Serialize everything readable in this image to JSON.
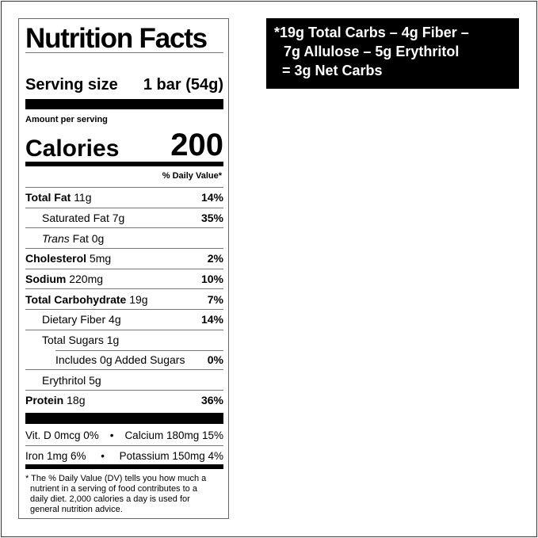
{
  "label": {
    "title": "Nutrition Facts",
    "serving_size_label": "Serving size",
    "serving_size_value": "1 bar (54g)",
    "amount_per_serving": "Amount per serving",
    "calories_label": "Calories",
    "calories_value": "200",
    "daily_value_header": "% Daily Value*",
    "nutrients": [
      {
        "name": "Total Fat",
        "amount": "11g",
        "dv": "14%",
        "bold": true,
        "indent": 0
      },
      {
        "name": "Saturated Fat",
        "amount": "7g",
        "dv": "35%",
        "bold": false,
        "indent": 1
      },
      {
        "name": "Trans",
        "name_suffix": "Fat",
        "amount": "0g",
        "dv": "",
        "bold": false,
        "indent": 1
      },
      {
        "name": "Cholesterol",
        "amount": "5mg",
        "dv": "2%",
        "bold": true,
        "indent": 0
      },
      {
        "name": "Sodium",
        "amount": "220mg",
        "dv": "10%",
        "bold": true,
        "indent": 0
      },
      {
        "name": "Total Carbohydrate",
        "amount": "19g",
        "dv": "7%",
        "bold": true,
        "indent": 0
      },
      {
        "name": "Dietary Fiber",
        "amount": "4g",
        "dv": "14%",
        "bold": false,
        "indent": 1
      },
      {
        "name": "Total Sugars",
        "amount": "1g",
        "dv": "",
        "bold": false,
        "indent": 1
      },
      {
        "name": "Includes 0g Added Sugars",
        "amount": "",
        "dv": "0%",
        "bold": false,
        "indent": 2
      },
      {
        "name": "Erythritol",
        "amount": "5g",
        "dv": "",
        "bold": false,
        "indent": 1
      },
      {
        "name": "Protein",
        "amount": "18g",
        "dv": "36%",
        "bold": true,
        "indent": 0
      }
    ],
    "minerals": [
      {
        "left": "Vit. D 0mcg 0%",
        "sep": "•",
        "right": "Calcium 180mg 15%"
      },
      {
        "left": "Iron 1mg 6%",
        "sep": "•",
        "right": "Potassium 150mg 4%"
      }
    ],
    "footnote": [
      "* The % Daily Value (DV) tells you how much a",
      "nutrient in a serving of food contributes to a",
      "daily diet. 2,000 calories a day is used for",
      "general nutrition advice."
    ]
  },
  "net_carbs": {
    "lines": [
      "*19g Total Carbs – 4g Fiber –",
      "7g Allulose – 5g Erythritol",
      "= 3g Net Carbs"
    ],
    "background": "#000000",
    "text_color": "#ffffff"
  }
}
